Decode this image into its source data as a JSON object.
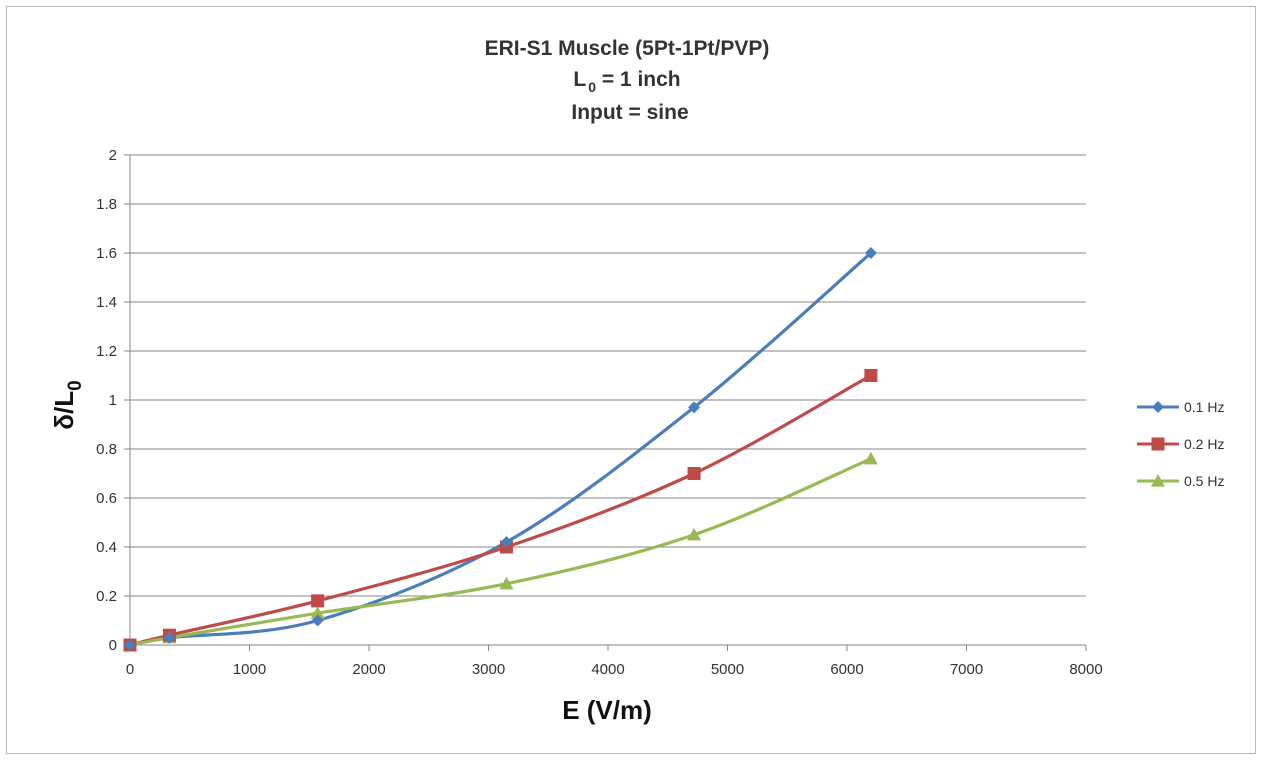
{
  "chart_data": {
    "type": "line",
    "title": "ERI-S1 Muscle (5Pt-1Pt/PVP)",
    "subtitle_l0": {
      "prefix": "L",
      "sub": "0",
      "suffix": " = 1 inch"
    },
    "subtitle_input": "Input = sine",
    "xlabel": "E (V/m)",
    "ylabel": {
      "main": "δ/L",
      "sub": "0"
    },
    "xlim": [
      0,
      8000
    ],
    "ylim": [
      0,
      2
    ],
    "xticks": [
      0,
      1000,
      2000,
      3000,
      4000,
      5000,
      6000,
      7000,
      8000
    ],
    "yticks": [
      0,
      0.2,
      0.4,
      0.6,
      0.8,
      1,
      1.2,
      1.4,
      1.6,
      1.8,
      2
    ],
    "grid": true,
    "legend_position": "right",
    "series": [
      {
        "name": "0.1 Hz",
        "color": "#4a7ebb",
        "marker": "diamond",
        "x": [
          0,
          330,
          1570,
          3150,
          4720,
          6200
        ],
        "y": [
          0,
          0.03,
          0.1,
          0.42,
          0.97,
          1.6
        ]
      },
      {
        "name": "0.2 Hz",
        "color": "#be4b48",
        "marker": "square",
        "x": [
          0,
          330,
          1570,
          3150,
          4720,
          6200
        ],
        "y": [
          0,
          0.04,
          0.18,
          0.4,
          0.7,
          1.1
        ]
      },
      {
        "name": "0.5 Hz",
        "color": "#98b954",
        "marker": "triangle",
        "x": [
          0,
          330,
          1570,
          3150,
          4720,
          6200
        ],
        "y": [
          0,
          0.03,
          0.13,
          0.25,
          0.45,
          0.76
        ]
      }
    ]
  }
}
